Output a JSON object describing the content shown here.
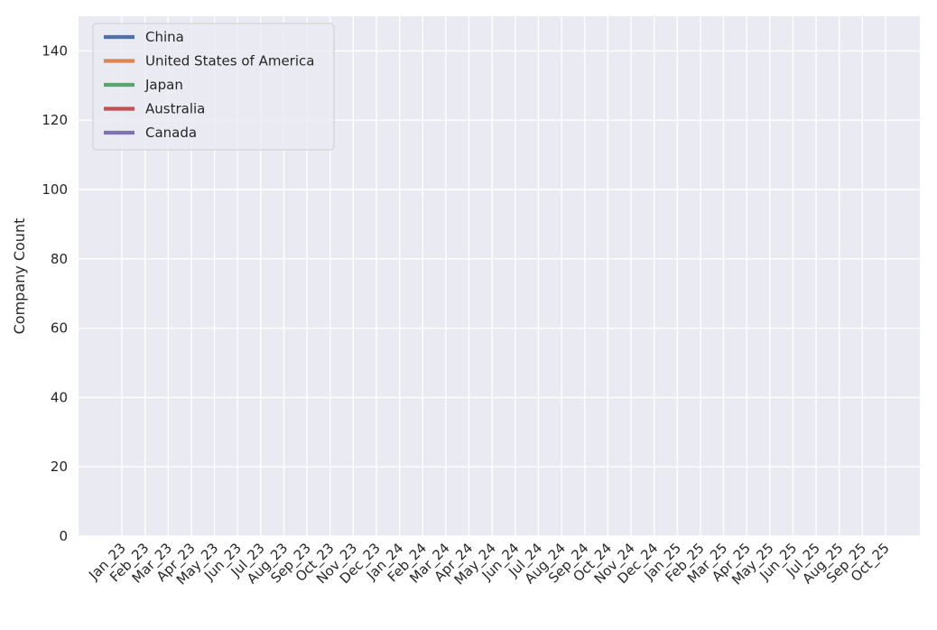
{
  "chart_data": {
    "type": "line",
    "title": "",
    "xlabel": "",
    "ylabel": "Company Count",
    "ylim": [
      0,
      150
    ],
    "yticks": [
      0,
      20,
      40,
      60,
      80,
      100,
      120,
      140
    ],
    "grid": true,
    "legend_position": "top-left",
    "categories": [
      "Jan_23",
      "Feb_23",
      "Mar_23",
      "Apr_23",
      "May_23",
      "Jun_23",
      "Jul_23",
      "Aug_23",
      "Sep_23",
      "Oct_23",
      "Nov_23",
      "Dec_23",
      "Jan_24",
      "Feb_24",
      "Mar_24",
      "Apr_24",
      "May_24",
      "Jun_24",
      "Jul_24",
      "Aug_24",
      "Sep_24",
      "Oct_24",
      "Nov_24",
      "Dec_24",
      "Jan_25",
      "Feb_25",
      "Mar_25",
      "Apr_25",
      "May_25",
      "Jun_25",
      "Jul_25",
      "Aug_25",
      "Sep_25",
      "Oct_25"
    ],
    "series": [
      {
        "name": "China",
        "color": "#4c72b0",
        "values": [
          null,
          null,
          null,
          null,
          null,
          null,
          null,
          null,
          null,
          null,
          null,
          null,
          null,
          null,
          null,
          null,
          null,
          null,
          null,
          null,
          null,
          null,
          null,
          null,
          null,
          null,
          null,
          null,
          null,
          null,
          null,
          null,
          null,
          null
        ]
      },
      {
        "name": "United States of America",
        "color": "#dd8452",
        "values": [
          null,
          null,
          null,
          null,
          null,
          null,
          null,
          null,
          null,
          null,
          null,
          null,
          null,
          null,
          null,
          null,
          null,
          null,
          null,
          null,
          null,
          null,
          null,
          null,
          null,
          null,
          null,
          null,
          null,
          null,
          null,
          null,
          null,
          null
        ]
      },
      {
        "name": "Japan",
        "color": "#55a868",
        "values": [
          null,
          null,
          null,
          null,
          null,
          null,
          null,
          null,
          null,
          null,
          null,
          null,
          null,
          null,
          null,
          null,
          null,
          null,
          null,
          null,
          null,
          null,
          null,
          null,
          null,
          null,
          null,
          null,
          null,
          null,
          null,
          null,
          null,
          null
        ]
      },
      {
        "name": "Australia",
        "color": "#c44e52",
        "values": [
          null,
          null,
          null,
          null,
          null,
          null,
          null,
          null,
          null,
          null,
          null,
          null,
          null,
          null,
          null,
          null,
          null,
          null,
          null,
          null,
          null,
          null,
          null,
          null,
          null,
          null,
          null,
          null,
          null,
          null,
          null,
          null,
          null,
          null
        ]
      },
      {
        "name": "Canada",
        "color": "#8172b3",
        "values": [
          null,
          null,
          null,
          null,
          null,
          null,
          null,
          null,
          null,
          null,
          null,
          null,
          null,
          null,
          null,
          null,
          null,
          null,
          null,
          null,
          null,
          null,
          null,
          null,
          null,
          null,
          null,
          null,
          null,
          null,
          null,
          null,
          null,
          null
        ]
      }
    ]
  }
}
